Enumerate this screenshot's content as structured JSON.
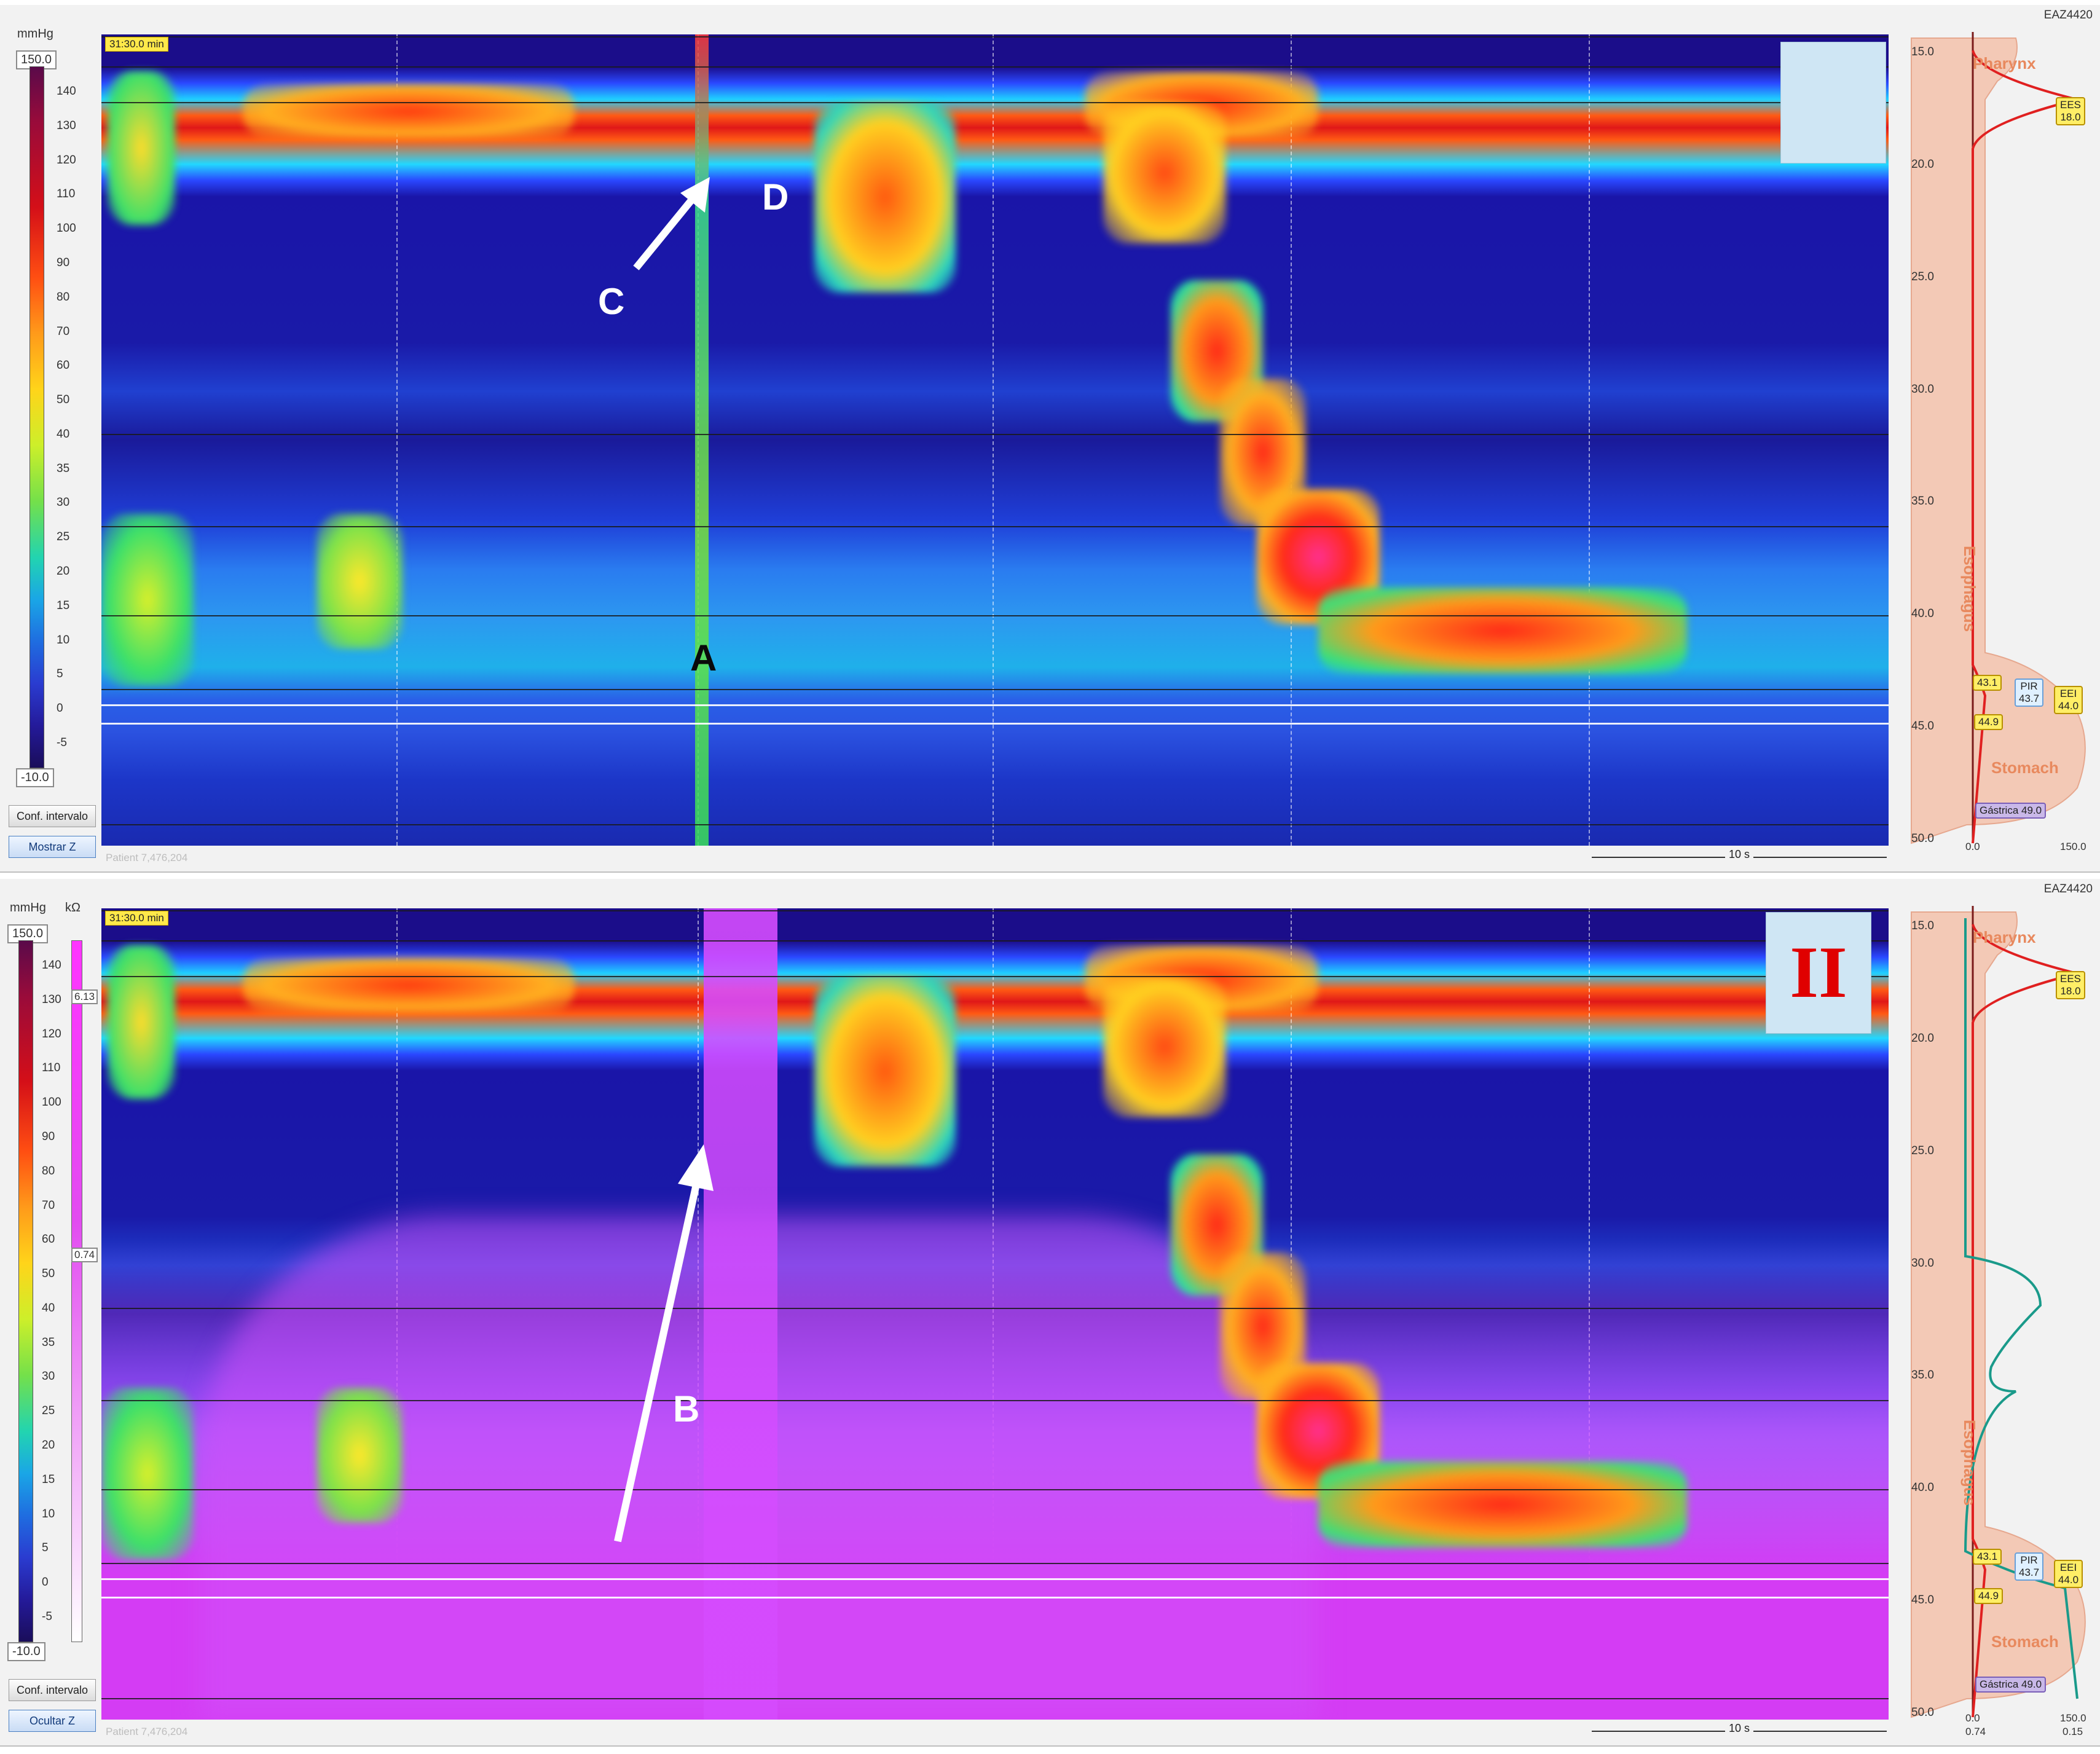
{
  "panels": [
    {
      "id": "panel-1",
      "unit_top": "mmHg",
      "scale_max": "150.0",
      "scale_min": "-10.0",
      "ticks": [
        "140",
        "130",
        "120",
        "110",
        "100",
        "90",
        "80",
        "70",
        "60",
        "50",
        "40",
        "35",
        "30",
        "25",
        "20",
        "15",
        "10",
        "5",
        "0",
        "-5"
      ],
      "time": "31:30.0 min",
      "conf_button": "Conf. intervalo",
      "z_button": "Mostrar Z",
      "footer": "Patient 7,476,204",
      "scalebar": "10 s",
      "device": "EAZ4420",
      "markers": {
        "A": "A",
        "C": "C",
        "D": "D"
      },
      "badge": ""
    },
    {
      "id": "panel-2",
      "unit_top": "mmHg",
      "unit_imp": "kΩ",
      "imp_top": "6.13",
      "imp_bottom": "0.74",
      "scale_max": "150.0",
      "scale_min": "-10.0",
      "ticks": [
        "140",
        "130",
        "120",
        "110",
        "100",
        "90",
        "80",
        "70",
        "60",
        "50",
        "40",
        "35",
        "30",
        "25",
        "20",
        "15",
        "10",
        "5",
        "0",
        "-5"
      ],
      "time": "31:30.0 min",
      "conf_button": "Conf. intervalo",
      "z_button": "Ocultar Z",
      "footer": "Patient 7,476,204",
      "scalebar": "10 s",
      "device": "EAZ4420",
      "markers": {
        "B": "B"
      },
      "badge": "II"
    }
  ],
  "anatomy": {
    "depths": [
      "15.0",
      "20.0",
      "25.0",
      "30.0",
      "35.0",
      "40.0",
      "45.0",
      "50.0"
    ],
    "pharynx": "Pharynx",
    "esophagus": "Esophagus",
    "stomach": "Stomach",
    "ees_label": "EES",
    "ees_value": "18.0",
    "eei_label": "EEI",
    "eei_value": "44.0",
    "pir_label": "PIR",
    "pir_value": "43.7",
    "tag_431": "43.1",
    "tag_449": "44.9",
    "gastrica": "Gástrica 49.0",
    "axis_left": "0.0",
    "axis_right": "150.0",
    "axis_left_imp": "0.74",
    "axis_right_imp": "0.15"
  },
  "colors": {
    "arrow": "#ffffff",
    "badge_bg": "#cfe6f4",
    "badge_text": "#e00000",
    "impedance": "#d64cff"
  }
}
